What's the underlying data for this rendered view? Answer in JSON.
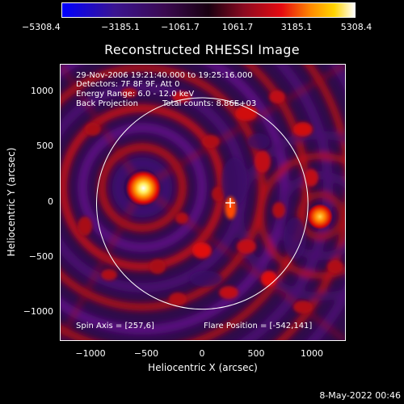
{
  "title": "Reconstructed RHESSI Image",
  "colorbar": {
    "tick_labels": [
      "−5308.4",
      "−3185.1",
      "−1061.7",
      "1061.7",
      "3185.1",
      "5308.4"
    ],
    "range": [
      -5308.4,
      5308.4
    ],
    "colors": [
      "#0000ff",
      "#3a0a6a",
      "#1a0010",
      "#6a0c22",
      "#c40010",
      "#ff6a00",
      "#ffd000",
      "#ffffff"
    ]
  },
  "axes": {
    "xlabel": "Heliocentric X (arcsec)",
    "ylabel": "Heliocentric Y (arcsec)",
    "x_ticks": [
      "−1000",
      "−500",
      "0",
      "500",
      "1000"
    ],
    "y_ticks": [
      "1000",
      "500",
      "0",
      "−500",
      "−1000"
    ],
    "x_range": [
      -1300,
      1310
    ],
    "y_range": [
      -1250,
      1270
    ]
  },
  "info": {
    "time_range": "29-Nov-2006 19:21:40.000 to 19:25:16.000",
    "detectors": "Detectors: 7F 8F 9F, Att 0",
    "energy": "Energy Range: 6.0 - 12.0 keV",
    "method": "Back Projection",
    "counts": "Total counts: 8.86E+03",
    "spin_axis": "Spin Axis = [257,6]",
    "flare_position": "Flare Position = [-542,141]"
  },
  "image_features": {
    "limb_color": "#ffffff",
    "source_bright": [
      -540,
      140
    ],
    "source_secondary": [
      1080,
      -120
    ],
    "source_weak": [
      260,
      -40
    ],
    "center_marker": [
      257,
      6
    ],
    "sun_radius_arcsec": 970
  },
  "footer": {
    "date": "8-May-2022 00:46"
  }
}
